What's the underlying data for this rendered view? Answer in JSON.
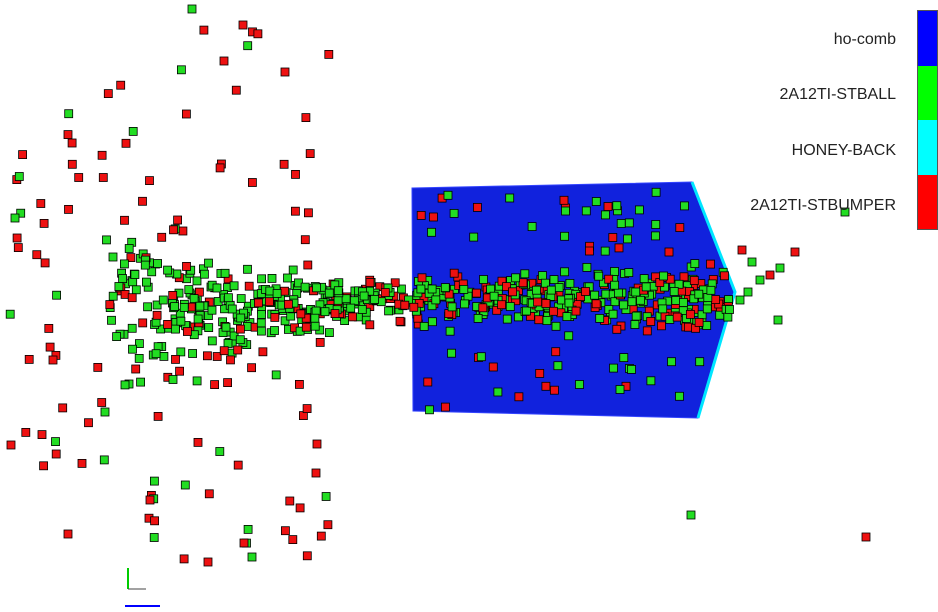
{
  "legend": {
    "items": [
      {
        "label": "ho-comb",
        "color": "#0000ff"
      },
      {
        "label": "2A12TI-STBALL",
        "color": "#00ff00"
      },
      {
        "label": "HONEY-BACK",
        "color": "#00ffff"
      },
      {
        "label": "2A12TI-STBUMPER",
        "color": "#ff0000"
      }
    ]
  },
  "colors": {
    "honeycomb": "#1122dd",
    "honeycomb_edge": "#2233ff",
    "back_layer": "#00e6ff",
    "debris_ball": "#22dd22",
    "debris_bumper": "#ee1111",
    "debris_outline": "#000000",
    "axis_y": "#00cc00",
    "axis_x": "#0000ff"
  }
}
